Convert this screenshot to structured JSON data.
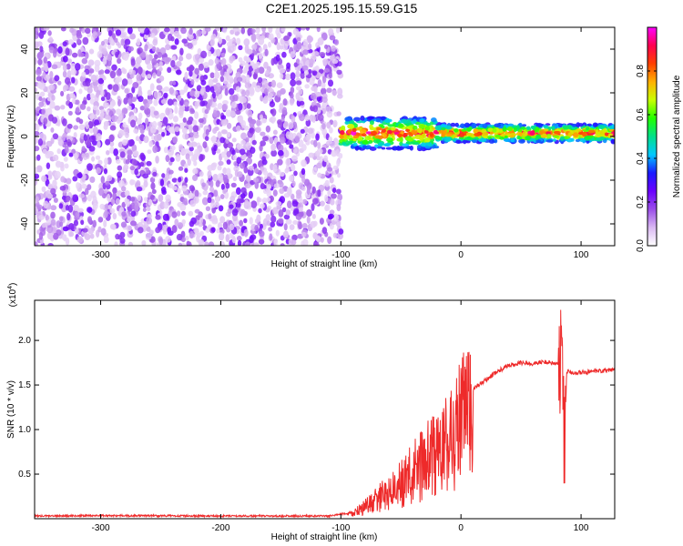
{
  "title": "C2E1.2025.195.15.59.G15",
  "chart_data": [
    {
      "type": "heatmap",
      "xlabel": "Height of straight line (km)",
      "ylabel": "Frequency (Hz)",
      "xlim": [
        -355,
        128
      ],
      "ylim": [
        -50,
        50
      ],
      "xticks": [
        -300,
        -200,
        -100,
        0,
        100
      ],
      "yticks": [
        -40,
        -20,
        0,
        20,
        40
      ],
      "colorbar": {
        "label": "Normalized spectral amplitude",
        "range": [
          0,
          1
        ],
        "ticks": [
          0.0,
          0.2,
          0.4,
          0.6,
          0.8
        ],
        "tick_labels": [
          "0.0",
          "0.2",
          "0.4",
          "0.6",
          "0.8"
        ],
        "colormap": [
          "#ffffff",
          "#d9b8f2",
          "#9a4de8",
          "#6a00ff",
          "#1a1aff",
          "#00c8ff",
          "#00e08a",
          "#22ff00",
          "#c8ff00",
          "#ffb000",
          "#ff4000",
          "#ff0050",
          "#ff00ff"
        ]
      },
      "regions": [
        {
          "description_x": [
            -355,
            -100
          ],
          "freq_range": [
            -50,
            50
          ],
          "amplitude": [
            0.05,
            0.25
          ]
        },
        {
          "description_x": [
            -100,
            128
          ],
          "freq_center": 1.5,
          "freq_halfwidth": 4,
          "amplitude": [
            0.3,
            1.0
          ]
        }
      ]
    },
    {
      "type": "line",
      "xlabel": "Height of straight line (km)",
      "ylabel": "SNR (10 * v/v)",
      "multiplier_label": "(x10",
      "multiplier_exp": "4",
      "multiplier_close": ")",
      "xlim": [
        -355,
        128
      ],
      "ylim": [
        0,
        2.45
      ],
      "xticks": [
        -300,
        -200,
        -100,
        0,
        100
      ],
      "yticks": [
        0.5,
        1.0,
        1.5,
        2.0
      ],
      "ytick_labels": [
        "0.5",
        "1.0",
        "1.5",
        "2.0"
      ],
      "series": [
        {
          "color": "#ee2a2a",
          "x": [
            -355,
            -300,
            -200,
            -110,
            -90,
            -80,
            -70,
            -60,
            -50,
            -40,
            -30,
            -20,
            -10,
            0,
            10,
            20,
            30,
            40,
            50,
            60,
            70,
            80,
            85,
            86,
            88,
            90,
            95,
            100,
            110,
            120,
            128
          ],
          "y": [
            0.03,
            0.035,
            0.03,
            0.03,
            0.07,
            0.15,
            0.25,
            0.35,
            0.45,
            0.6,
            0.75,
            0.85,
            1.0,
            1.3,
            1.45,
            1.55,
            1.65,
            1.72,
            1.75,
            1.74,
            1.76,
            1.74,
            1.7,
            0.7,
            1.65,
            1.66,
            1.63,
            1.64,
            1.65,
            1.66,
            1.67
          ]
        }
      ]
    }
  ]
}
